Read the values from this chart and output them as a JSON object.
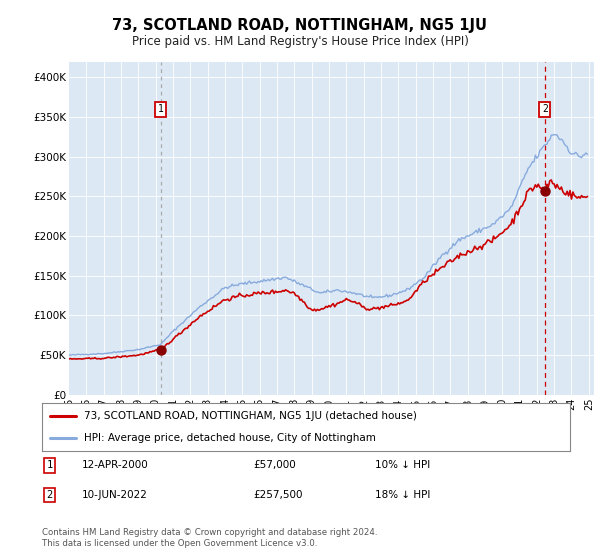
{
  "title": "73, SCOTLAND ROAD, NOTTINGHAM, NG5 1JU",
  "subtitle": "Price paid vs. HM Land Registry's House Price Index (HPI)",
  "background_color": "#dce9f5",
  "plot_bg_color": "#dce9f5",
  "ylim": [
    0,
    420000
  ],
  "yticks": [
    0,
    50000,
    100000,
    150000,
    200000,
    250000,
    300000,
    350000,
    400000
  ],
  "ytick_labels": [
    "£0",
    "£50K",
    "£100K",
    "£150K",
    "£200K",
    "£250K",
    "£300K",
    "£350K",
    "£400K"
  ],
  "legend_entry1": "73, SCOTLAND ROAD, NOTTINGHAM, NG5 1JU (detached house)",
  "legend_entry2": "HPI: Average price, detached house, City of Nottingham",
  "annotation1_label": "1",
  "annotation1_date": "12-APR-2000",
  "annotation1_price": "£57,000",
  "annotation1_hpi": "10% ↓ HPI",
  "annotation2_label": "2",
  "annotation2_date": "10-JUN-2022",
  "annotation2_price": "£257,500",
  "annotation2_hpi": "18% ↓ HPI",
  "footer": "Contains HM Land Registry data © Crown copyright and database right 2024.\nThis data is licensed under the Open Government Licence v3.0.",
  "line_color_property": "#cc0000",
  "line_color_hpi": "#88aadd",
  "marker_color": "#880000",
  "vline1_color": "#aaaaaa",
  "vline2_color": "#cc0000",
  "x_start_year": 1995.3,
  "x_end_year": 2025.3
}
